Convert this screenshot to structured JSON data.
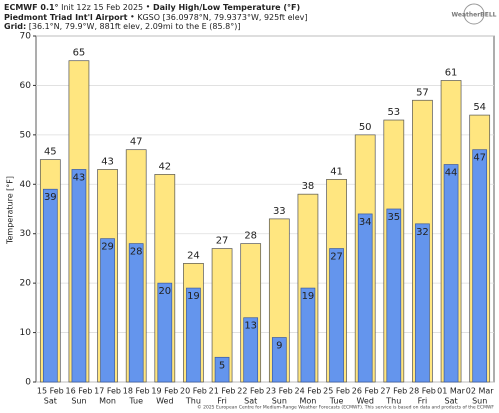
{
  "header": {
    "model": "ECMWF 0.1°",
    "init": "Init 12z 15 Feb 2025",
    "product": "Daily High/Low Temperature (°F)",
    "station": "Piedmont Triad Int'l Airport",
    "station_info": "KGSO [36.0978°N, 79.9373°W, 925ft elev]",
    "grid_label": "Grid:",
    "grid_info": "[36.1°N, 79.9°W, 881ft elev, 2.09mi to the E (85.8°)]",
    "logo": "WeatherBELL",
    "footer": "© 2025 European Centre for Medium-Range Weather Forecasts (ECMWF). This service is based on data and products of the ECMWF"
  },
  "chart_data": {
    "type": "bar",
    "ylabel": "Temperature [°F]",
    "categories": [
      "15 Feb",
      "16 Feb",
      "17 Feb",
      "18 Feb",
      "19 Feb",
      "20 Feb",
      "21 Feb",
      "22 Feb",
      "23 Feb",
      "24 Feb",
      "25 Feb",
      "26 Feb",
      "27 Feb",
      "28 Feb",
      "01 Mar",
      "02 Mar"
    ],
    "weekdays": [
      "Sat",
      "Sun",
      "Mon",
      "Tue",
      "Wed",
      "Thu",
      "Fri",
      "Sat",
      "Sun",
      "Mon",
      "Tue",
      "Wed",
      "Thu",
      "Fri",
      "Sat",
      "Sun"
    ],
    "series": [
      {
        "name": "High",
        "color": "#ffe680",
        "values": [
          45,
          65,
          43,
          47,
          42,
          24,
          27,
          28,
          33,
          38,
          41,
          50,
          53,
          57,
          61,
          54
        ]
      },
      {
        "name": "Low",
        "color": "#6495ed",
        "values": [
          39,
          43,
          29,
          28,
          20,
          19,
          5,
          13,
          9,
          19,
          27,
          34,
          35,
          32,
          44,
          47
        ]
      }
    ],
    "ylim": [
      0,
      70
    ],
    "yticks": [
      0,
      10,
      20,
      30,
      40,
      50,
      60,
      70
    ],
    "grid": true
  }
}
